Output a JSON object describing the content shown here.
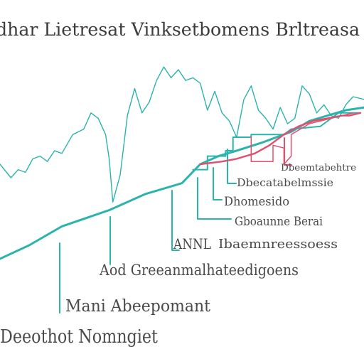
{
  "title": "dhar Lietresat Vinksetbomens Brltreasa",
  "colors": {
    "teal": "#2bb3ad",
    "pink": "#e0506e",
    "text": "#4a4a4a",
    "bg": "#ffffff"
  },
  "annotations": [
    {
      "text": "Dbeemtabehtre"
    },
    {
      "text": "Dbecatabelmssie"
    },
    {
      "text": "Dhomesido"
    },
    {
      "text": "Gboaunne Berai"
    },
    {
      "text": "ANNL"
    },
    {
      "text": "Ibaemnreessoess"
    },
    {
      "text": "Aod Greeanmalhateedigoens"
    },
    {
      "text": "Mani Abeepomant"
    },
    {
      "text": "Deeothot Nomngiet"
    }
  ],
  "chart_data": {
    "type": "line",
    "title": "dhar Lietresat Vinksetbomens Brltreasa",
    "xlabel": "",
    "ylabel": "",
    "xlim": [
      0,
      100
    ],
    "ylim": [
      0,
      100
    ],
    "grid": false,
    "legend": "none",
    "series": [
      {
        "color": "#2bb3ad",
        "style": "thin",
        "points": [
          [
            0,
            55
          ],
          [
            3,
            50
          ],
          [
            5,
            53
          ],
          [
            7,
            52
          ],
          [
            9,
            57
          ],
          [
            11,
            58
          ],
          [
            13,
            56
          ],
          [
            15,
            60
          ],
          [
            17,
            59
          ],
          [
            20,
            66
          ],
          [
            23,
            68
          ],
          [
            25,
            74
          ],
          [
            27,
            72
          ],
          [
            29,
            66
          ],
          [
            30,
            57
          ],
          [
            31,
            41
          ],
          [
            33,
            51
          ],
          [
            35,
            73
          ],
          [
            37,
            83
          ],
          [
            39,
            74
          ],
          [
            41,
            78
          ],
          [
            43,
            86
          ],
          [
            45,
            91
          ],
          [
            47,
            87
          ],
          [
            49,
            90
          ],
          [
            51,
            86
          ],
          [
            53,
            87
          ],
          [
            55,
            85
          ],
          [
            57,
            75
          ],
          [
            59,
            82
          ],
          [
            61,
            74
          ],
          [
            63,
            71
          ],
          [
            65,
            65
          ],
          [
            67,
            79
          ],
          [
            69,
            84
          ],
          [
            71,
            75
          ],
          [
            73,
            72
          ],
          [
            75,
            68
          ],
          [
            77,
            76
          ],
          [
            79,
            70
          ],
          [
            81,
            72
          ],
          [
            83,
            84
          ],
          [
            85,
            81
          ],
          [
            87,
            74
          ],
          [
            89,
            77
          ],
          [
            91,
            73
          ],
          [
            93,
            72
          ],
          [
            95,
            77
          ],
          [
            97,
            80
          ],
          [
            100,
            79
          ]
        ]
      },
      {
        "color": "#2bb3ad",
        "style": "thick",
        "points": [
          [
            0,
            20
          ],
          [
            8,
            25
          ],
          [
            17,
            32
          ],
          [
            30,
            38
          ],
          [
            40,
            44
          ],
          [
            50,
            48
          ],
          [
            55,
            55
          ],
          [
            60,
            58
          ],
          [
            65,
            60
          ],
          [
            72,
            63
          ],
          [
            80,
            67
          ],
          [
            85,
            71
          ],
          [
            90,
            73
          ],
          [
            95,
            75
          ],
          [
            100,
            76
          ]
        ]
      },
      {
        "color": "#2bb3ad",
        "style": "step",
        "points": [
          [
            53,
            53
          ],
          [
            57,
            53
          ],
          [
            57,
            58
          ],
          [
            62,
            58
          ],
          [
            62,
            60
          ],
          [
            64,
            60
          ],
          [
            64,
            65
          ],
          [
            69,
            65
          ],
          [
            69,
            66
          ],
          [
            78,
            66
          ],
          [
            80,
            68
          ],
          [
            88,
            69
          ],
          [
            89,
            70
          ],
          [
            93,
            74
          ],
          [
            95,
            74
          ],
          [
            99,
            74
          ]
        ]
      },
      {
        "color": "#e0506e",
        "style": "pink",
        "points": [
          [
            55,
            55
          ],
          [
            61,
            56
          ],
          [
            65,
            57
          ],
          [
            70,
            59
          ],
          [
            74,
            62
          ],
          [
            78,
            66
          ],
          [
            82,
            69
          ],
          [
            86,
            71
          ],
          [
            90,
            72
          ],
          [
            94,
            73
          ],
          [
            96,
            73
          ],
          [
            99,
            74
          ]
        ]
      },
      {
        "color": "#e0506e",
        "style": "pink-thin",
        "points": [
          [
            69,
            65
          ],
          [
            69,
            56
          ],
          [
            75,
            56
          ],
          [
            75,
            62
          ],
          [
            78,
            61
          ],
          [
            78,
            55
          ],
          [
            80,
            58
          ],
          [
            80,
            66
          ],
          [
            85,
            70
          ],
          [
            94,
            73
          ],
          [
            97,
            74
          ]
        ]
      }
    ]
  }
}
